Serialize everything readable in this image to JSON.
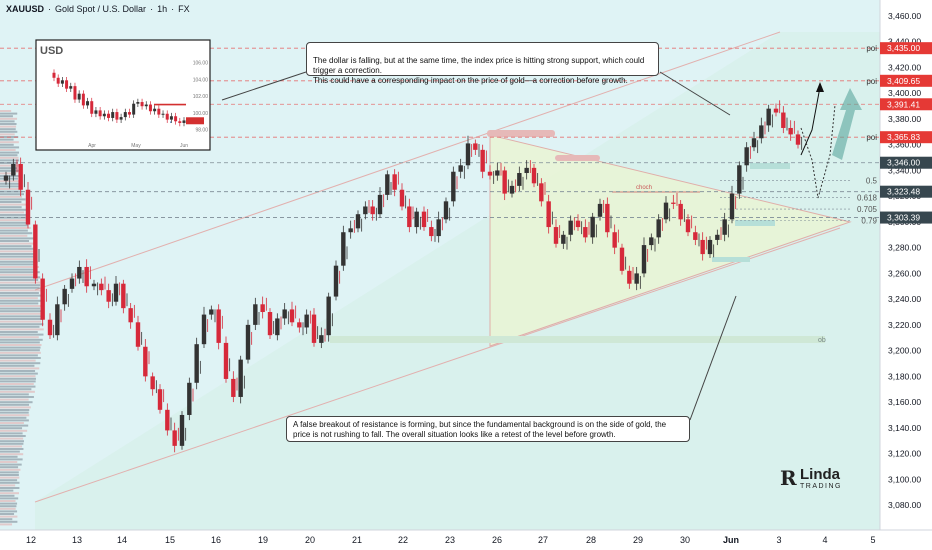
{
  "header": {
    "symbol": "XAUUSD",
    "sep1": "·",
    "name": "Gold Spot / U.S. Dollar",
    "sep2": "·",
    "interval": "1h",
    "sep3": "·",
    "exchange": "FX"
  },
  "colors": {
    "up": "#26a69a",
    "down": "#ef5350",
    "candle_up": "#333333",
    "candle_down": "#d6293a",
    "channel_fill": "#d7efe0",
    "triangle_fill": "#e8f5d8",
    "price_tag": "#e53935",
    "price_tag_dark": "#37474f",
    "callout_border": "#444444"
  },
  "callouts": {
    "top": "The dollar is falling, but at the same time, the index price is hitting strong support, which could trigger a correction.\nThis could have a corresponding impact on the price of gold—a correction before growth.",
    "bottom": "A false breakout of resistance is forming, but since the fundamental background is on the side of gold, the price is not rushing to fall. The overall situation looks like a retest of the level before growth."
  },
  "logo": {
    "mark": "R",
    "line1": "Linda",
    "line2": "TRADING"
  },
  "chart_data": [
    {
      "type": "line",
      "title": "XAUUSD · Gold Spot / U.S. Dollar · 1h · FX",
      "xlabel": "",
      "ylabel": "",
      "y_ticks": [
        3460,
        3440,
        3420,
        3400,
        3380,
        3360,
        3340,
        3320,
        3300,
        3280,
        3260,
        3240,
        3220,
        3200,
        3180,
        3160,
        3140,
        3120,
        3100,
        3080
      ],
      "y_tick_labels": [
        "3,460.00",
        "3,440.00",
        "3,420.00",
        "3,400.00",
        "3,380.00",
        "3,360.00",
        "3,340.00",
        "3,320.00",
        "3,300.00",
        "3,280.00",
        "3,260.00",
        "3,240.00",
        "3,220.00",
        "3,200.00",
        "3,180.00",
        "3,160.00",
        "3,140.00",
        "3,120.00",
        "3,100.00",
        "3,080.00"
      ],
      "ylim": [
        3071,
        3478
      ],
      "x_ticks": [
        "12",
        "13",
        "14",
        "15",
        "16",
        "19",
        "20",
        "21",
        "22",
        "23",
        "26",
        "27",
        "28",
        "29",
        "30",
        "Jun",
        "3",
        "4",
        "5"
      ],
      "grid": false,
      "series": [
        {
          "values": [
            3336,
            3345,
            3325,
            3298,
            3256,
            3224,
            3212,
            3236,
            3248,
            3256,
            3265,
            3250,
            3252,
            3247,
            3238,
            3252,
            3233,
            3222,
            3203,
            3180,
            3170,
            3154,
            3138,
            3126,
            3150,
            3175,
            3205,
            3228,
            3232,
            3206,
            3178,
            3164,
            3193,
            3220,
            3236,
            3230,
            3212,
            3225,
            3232,
            3222,
            3218,
            3228,
            3206,
            3212,
            3242,
            3266,
            3292,
            3295,
            3306,
            3312,
            3306,
            3321,
            3337,
            3325,
            3312,
            3296,
            3308,
            3296,
            3289,
            3302,
            3316,
            3339,
            3344,
            3361,
            3356,
            3339,
            3336,
            3340,
            3322,
            3328,
            3338,
            3342,
            3330,
            3316,
            3296,
            3283,
            3290,
            3301,
            3296,
            3288,
            3304,
            3314,
            3292,
            3280,
            3262,
            3252,
            3260,
            3282,
            3288,
            3302,
            3315,
            3314,
            3302,
            3292,
            3286,
            3275,
            3286,
            3290,
            3302,
            3322,
            3344,
            3358,
            3365,
            3375,
            3388,
            3385,
            3373,
            3368,
            3360
          ]
        }
      ],
      "levels": [
        {
          "price": 3435.0,
          "label": "3,435.00",
          "tag": "poi"
        },
        {
          "price": 3409.65,
          "label": "3,409.65",
          "tag": "poi"
        },
        {
          "price": 3391.41,
          "label": "3,391.41",
          "tag": ""
        },
        {
          "price": 3365.83,
          "label": "3,365.83",
          "tag": "poi"
        },
        {
          "price": 3346.0,
          "label": "3,346.00",
          "tag": ""
        },
        {
          "price": 3323.48,
          "label": "3,323.48",
          "tag": ""
        },
        {
          "price": 3303.39,
          "label": "3,303.39",
          "tag": ""
        }
      ],
      "fib_levels": [
        {
          "ratio": "0.5",
          "price": 3332
        },
        {
          "ratio": "0.618",
          "price": 3319
        },
        {
          "ratio": "0.705",
          "price": 3310
        },
        {
          "ratio": "0.79",
          "price": 3301
        }
      ],
      "annotations": [
        "choch",
        "ob",
        "poi"
      ]
    },
    {
      "type": "line",
      "title": "USD",
      "xlabel": "",
      "ylabel": "",
      "y_ticks": [
        106,
        104,
        102,
        100,
        98
      ],
      "y_tick_labels": [
        "106.00",
        "104.00",
        "102.00",
        "100.00",
        "98.00"
      ],
      "ylim": [
        97,
        108
      ],
      "x_ticks": [
        "Apr",
        "May",
        "Jun"
      ],
      "grid": false,
      "series": [
        {
          "values": [
            104.2,
            103.5,
            103.9,
            102.9,
            103.2,
            101.6,
            102.3,
            100.9,
            101.4,
            99.9,
            100.3,
            99.6,
            99.9,
            99.4,
            100.1,
            99.2,
            99.5,
            100.1,
            99.8,
            101.1,
            101.3,
            100.8,
            101.0,
            100.2,
            100.5,
            99.8,
            99.9,
            99.2,
            99.6,
            99.0,
            98.8,
            99.1
          ]
        }
      ],
      "levels": [
        {
          "price": 101.0,
          "label": ""
        },
        {
          "price": 99.0,
          "label": "99.0"
        }
      ]
    }
  ]
}
